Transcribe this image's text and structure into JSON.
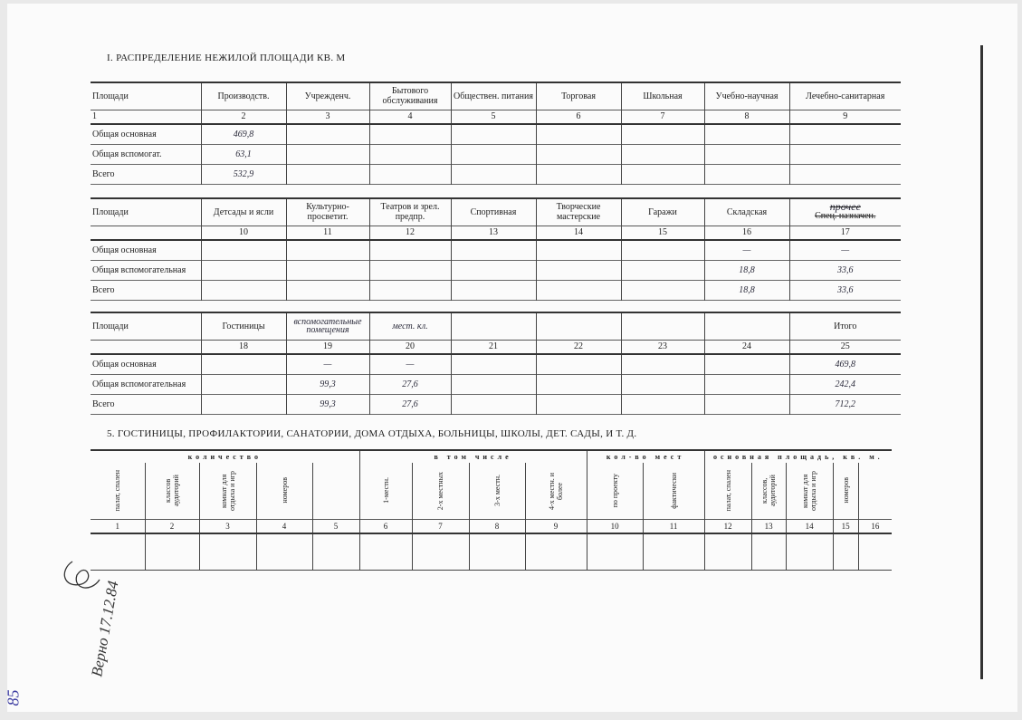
{
  "section1": {
    "title": "I. РАСПРЕДЕЛЕНИЕ НЕЖИЛОЙ ПЛОЩАДИ КВ. М",
    "blocks": [
      {
        "headers": [
          "Площади",
          "Производств.",
          "Учрежденч.",
          "Бытового обслуживания",
          "Обществен. питания",
          "Торговая",
          "Школьная",
          "Учебно-научная",
          "Лечебно-санитарная"
        ],
        "numbers": [
          "1",
          "2",
          "3",
          "4",
          "5",
          "6",
          "7",
          "8",
          "9"
        ],
        "rows": [
          [
            "Общая основная",
            "469,8",
            "",
            "",
            "",
            "",
            "",
            "",
            ""
          ],
          [
            "Общая вспомогат.",
            "63,1",
            "",
            "",
            "",
            "",
            "",
            "",
            ""
          ],
          [
            "Всего",
            "532,9",
            "",
            "",
            "",
            "",
            "",
            "",
            ""
          ]
        ]
      },
      {
        "headers": [
          "Площади",
          "Детсады и ясли",
          "Культурно-просветит.",
          "Театров и зрел. предпр.",
          "Спортивная",
          "Творческие мастерские",
          "Гаражи",
          "Складская",
          "Спец. назначен."
        ],
        "header_annotation": "прочее",
        "numbers": [
          "",
          "10",
          "11",
          "12",
          "13",
          "14",
          "15",
          "16",
          "17"
        ],
        "rows": [
          [
            "Общая основная",
            "",
            "",
            "",
            "",
            "",
            "",
            "—",
            "—"
          ],
          [
            "Общая вспомогательная",
            "",
            "",
            "",
            "",
            "",
            "",
            "18,8",
            "33,6"
          ],
          [
            "Всего",
            "",
            "",
            "",
            "",
            "",
            "",
            "18,8",
            "33,6"
          ]
        ]
      },
      {
        "headers": [
          "Площади",
          "Гостиницы",
          "вспомогательные помещения",
          "мест. кл.",
          "",
          "",
          "",
          "",
          "Итого"
        ],
        "numbers": [
          "",
          "18",
          "19",
          "20",
          "21",
          "22",
          "23",
          "24",
          "25"
        ],
        "rows": [
          [
            "Общая основная",
            "",
            "—",
            "—",
            "",
            "",
            "",
            "",
            "469,8"
          ],
          [
            "Общая вспомогательная",
            "",
            "99,3",
            "27,6",
            "",
            "",
            "",
            "",
            "242,4"
          ],
          [
            "Всего",
            "",
            "99,3",
            "27,6",
            "",
            "",
            "",
            "",
            "712,2"
          ]
        ]
      }
    ]
  },
  "section5": {
    "title": "5. ГОСТИНИЦЫ, ПРОФИЛАКТОРИИ, САНАТОРИИ, ДОМА ОТДЫХА, БОЛЬНИЦЫ, ШКОЛЫ, ДЕТ. САДЫ, И Т. Д.",
    "groups": [
      {
        "label": "количество",
        "span": 5
      },
      {
        "label": "в том числе",
        "span": 4
      },
      {
        "label": "кол-во мест",
        "span": 2
      },
      {
        "label": "основная площадь, кв. м.",
        "span": 5
      }
    ],
    "headers": [
      "палат, спален",
      "классов аудиторий",
      "комнат для отдыха и игр",
      "номеров",
      "",
      "1-местн.",
      "2-х местных",
      "3-х местн.",
      "4-х местн. и более",
      "по проекту",
      "фактически",
      "палат, спален",
      "классов, аудиторий",
      "комнат для отдыха и игр",
      "номеров",
      ""
    ],
    "numbers": [
      "1",
      "2",
      "3",
      "4",
      "5",
      "6",
      "7",
      "8",
      "9",
      "10",
      "11",
      "12",
      "13",
      "14",
      "15",
      "16"
    ]
  },
  "margin": {
    "signature_text": "Верно 17.12.84",
    "page_number": "85"
  }
}
